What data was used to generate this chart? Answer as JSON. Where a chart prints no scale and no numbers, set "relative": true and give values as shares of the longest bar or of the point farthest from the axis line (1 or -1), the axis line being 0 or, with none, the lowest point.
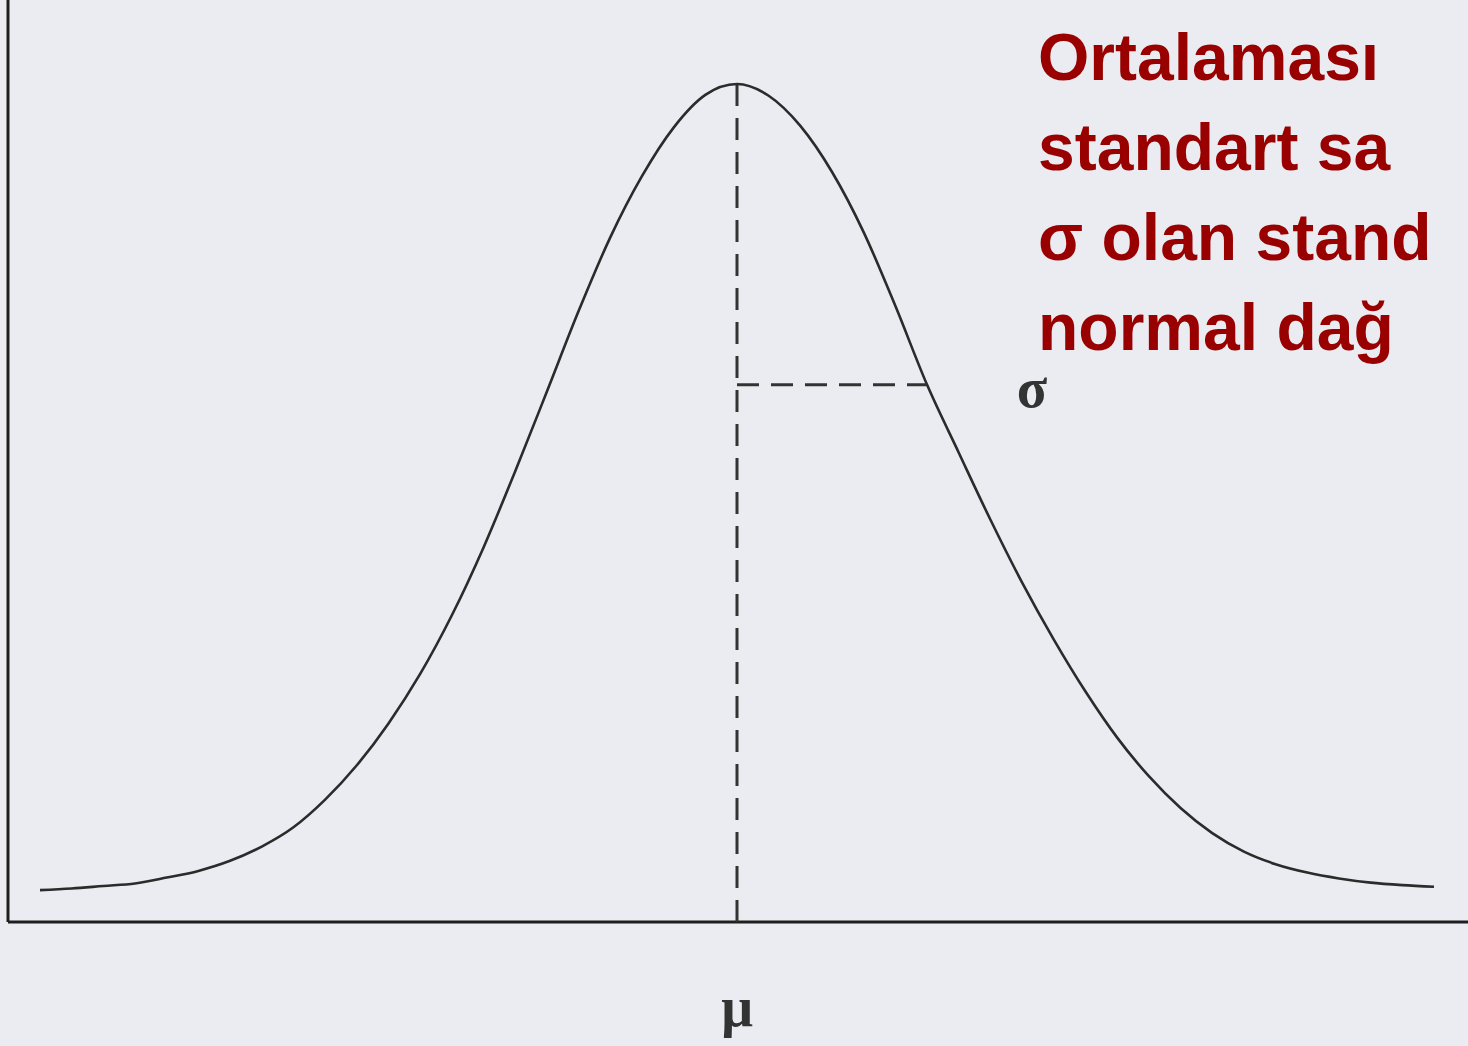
{
  "chart_data": {
    "type": "line",
    "title": "Ortalaması\nstandart sa\nσ olan stand\nnormal dağ",
    "relative": true,
    "categories": [
      null,
      null,
      null,
      null,
      null,
      null,
      null,
      null,
      null,
      null,
      null,
      null,
      null,
      null,
      null,
      null,
      null,
      null,
      null,
      null,
      null,
      null,
      null,
      null,
      null,
      null,
      null,
      null,
      null,
      null,
      null,
      null,
      null,
      null,
      null,
      null,
      null,
      null,
      null,
      null,
      null,
      null,
      null,
      null,
      null
    ],
    "annotations": [
      "μ"
    ],
    "series": [
      {
        "color": "#2b2b2b",
        "values": [
          0.038,
          0.04,
          0.043,
          0.046,
          0.053,
          0.061,
          0.073,
          0.09,
          0.113,
          0.146,
          0.187,
          0.237,
          0.296,
          0.366,
          0.447,
          0.538,
          0.633,
          0.729,
          0.817,
          0.89,
          0.948,
          0.987,
          1,
          0.986,
          0.95,
          0.895,
          0.823,
          0.735,
          0.641,
          0.56,
          0.48,
          0.405,
          0.337,
          0.275,
          0.22,
          0.174,
          0.136,
          0.106,
          0.084,
          0.069,
          0.059,
          0.052,
          0.047,
          0.044,
          0.042
        ]
      },
      {
        "name": "σ",
        "color": "#333333",
        "line_style": "dashed",
        "values": [
          null,
          null,
          null,
          null,
          null,
          null,
          null,
          null,
          null,
          null,
          null,
          null,
          null,
          null,
          null,
          null,
          null,
          null,
          null,
          null,
          null,
          null,
          0.641,
          0.641,
          0.641,
          0.641,
          0.641,
          0.641,
          0.641,
          null,
          null,
          null,
          null,
          null,
          null,
          null,
          null,
          null,
          null,
          null,
          null,
          null,
          null,
          null,
          null
        ]
      }
    ]
  }
}
